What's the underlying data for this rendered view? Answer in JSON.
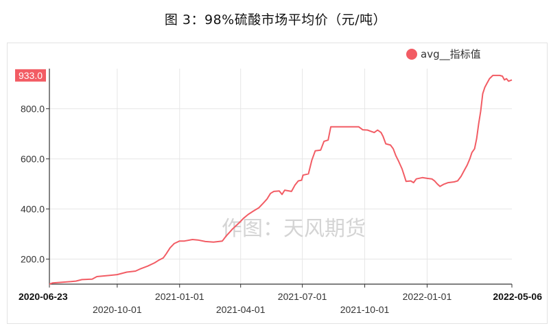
{
  "chart_data": {
    "type": "line",
    "title": "图 3：98%硫酸市场平均价（元/吨）",
    "watermark": "作图：天风期货",
    "legend": {
      "label": "avg__指标值",
      "position": "top-right",
      "color": "#f25c64"
    },
    "ylim": [
      100,
      960
    ],
    "y_ticks": [
      {
        "value": 200,
        "label": "200.0"
      },
      {
        "value": 400,
        "label": "400.0"
      },
      {
        "value": 600,
        "label": "600.0"
      },
      {
        "value": 800,
        "label": "800.0"
      }
    ],
    "max_label": {
      "value": 933,
      "label": "933.0"
    },
    "xlim": [
      "2020-06-23",
      "2022-05-06"
    ],
    "x_ticks": [
      {
        "date": "2020-06-23",
        "label": "2020-06-23",
        "row": 1,
        "bold": true
      },
      {
        "date": "2020-10-01",
        "label": "2020-10-01",
        "row": 2
      },
      {
        "date": "2021-01-01",
        "label": "2021-01-01",
        "row": 1
      },
      {
        "date": "2021-04-01",
        "label": "2021-04-01",
        "row": 2
      },
      {
        "date": "2021-07-01",
        "label": "2021-07-01",
        "row": 1
      },
      {
        "date": "2021-10-01",
        "label": "2021-10-01",
        "row": 2
      },
      {
        "date": "2022-01-01",
        "label": "2022-01-01",
        "row": 1
      },
      {
        "date": "2022-05-06",
        "label": "2022-05-06",
        "row": 1,
        "bold": true
      }
    ],
    "series": [
      {
        "name": "avg__指标值",
        "color": "#f25c64",
        "points": [
          [
            "2020-06-23",
            100
          ],
          [
            "2020-06-28",
            105
          ],
          [
            "2020-07-10",
            107
          ],
          [
            "2020-07-25",
            110
          ],
          [
            "2020-08-01",
            112
          ],
          [
            "2020-08-10",
            118
          ],
          [
            "2020-08-25",
            120
          ],
          [
            "2020-09-01",
            130
          ],
          [
            "2020-09-20",
            135
          ],
          [
            "2020-10-01",
            138
          ],
          [
            "2020-10-15",
            148
          ],
          [
            "2020-10-28",
            152
          ],
          [
            "2020-11-05",
            162
          ],
          [
            "2020-11-15",
            172
          ],
          [
            "2020-11-25",
            185
          ],
          [
            "2020-12-01",
            195
          ],
          [
            "2020-12-08",
            205
          ],
          [
            "2020-12-12",
            220
          ],
          [
            "2020-12-18",
            245
          ],
          [
            "2020-12-24",
            262
          ],
          [
            "2021-01-01",
            272
          ],
          [
            "2021-01-08",
            272
          ],
          [
            "2021-01-20",
            278
          ],
          [
            "2021-01-28",
            276
          ],
          [
            "2021-02-08",
            270
          ],
          [
            "2021-02-20",
            268
          ],
          [
            "2021-03-05",
            272
          ],
          [
            "2021-03-10",
            290
          ],
          [
            "2021-03-15",
            305
          ],
          [
            "2021-03-20",
            320
          ],
          [
            "2021-03-30",
            345
          ],
          [
            "2021-04-05",
            362
          ],
          [
            "2021-04-12",
            378
          ],
          [
            "2021-04-20",
            392
          ],
          [
            "2021-04-28",
            405
          ],
          [
            "2021-05-05",
            425
          ],
          [
            "2021-05-10",
            440
          ],
          [
            "2021-05-15",
            462
          ],
          [
            "2021-05-20",
            470
          ],
          [
            "2021-05-28",
            472
          ],
          [
            "2021-06-01",
            458
          ],
          [
            "2021-06-05",
            475
          ],
          [
            "2021-06-15",
            470
          ],
          [
            "2021-06-20",
            495
          ],
          [
            "2021-06-25",
            512
          ],
          [
            "2021-06-30",
            515
          ],
          [
            "2021-07-02",
            535
          ],
          [
            "2021-07-10",
            540
          ],
          [
            "2021-07-15",
            595
          ],
          [
            "2021-07-20",
            632
          ],
          [
            "2021-07-28",
            635
          ],
          [
            "2021-08-02",
            670
          ],
          [
            "2021-08-08",
            675
          ],
          [
            "2021-08-12",
            728
          ],
          [
            "2021-08-20",
            728
          ],
          [
            "2021-09-01",
            728
          ],
          [
            "2021-09-10",
            728
          ],
          [
            "2021-09-22",
            728
          ],
          [
            "2021-09-28",
            716
          ],
          [
            "2021-10-05",
            715
          ],
          [
            "2021-10-10",
            710
          ],
          [
            "2021-10-15",
            705
          ],
          [
            "2021-10-20",
            715
          ],
          [
            "2021-10-25",
            705
          ],
          [
            "2021-10-28",
            690
          ],
          [
            "2021-11-01",
            660
          ],
          [
            "2021-11-08",
            655
          ],
          [
            "2021-11-12",
            640
          ],
          [
            "2021-11-16",
            612
          ],
          [
            "2021-11-20",
            590
          ],
          [
            "2021-11-25",
            560
          ],
          [
            "2021-11-28",
            535
          ],
          [
            "2021-12-01",
            510
          ],
          [
            "2021-12-08",
            512
          ],
          [
            "2021-12-12",
            505
          ],
          [
            "2021-12-16",
            520
          ],
          [
            "2021-12-25",
            525
          ],
          [
            "2022-01-01",
            522
          ],
          [
            "2022-01-08",
            520
          ],
          [
            "2022-01-12",
            512
          ],
          [
            "2022-01-16",
            500
          ],
          [
            "2022-01-20",
            490
          ],
          [
            "2022-01-25",
            498
          ],
          [
            "2022-02-01",
            505
          ],
          [
            "2022-02-10",
            508
          ],
          [
            "2022-02-15",
            512
          ],
          [
            "2022-02-20",
            530
          ],
          [
            "2022-02-25",
            555
          ],
          [
            "2022-03-01",
            575
          ],
          [
            "2022-03-05",
            600
          ],
          [
            "2022-03-08",
            625
          ],
          [
            "2022-03-12",
            640
          ],
          [
            "2022-03-15",
            680
          ],
          [
            "2022-03-18",
            740
          ],
          [
            "2022-03-21",
            790
          ],
          [
            "2022-03-24",
            860
          ],
          [
            "2022-03-27",
            885
          ],
          [
            "2022-03-30",
            900
          ],
          [
            "2022-04-03",
            920
          ],
          [
            "2022-04-08",
            933
          ],
          [
            "2022-04-18",
            933
          ],
          [
            "2022-04-22",
            930
          ],
          [
            "2022-04-25",
            915
          ],
          [
            "2022-04-28",
            920
          ],
          [
            "2022-05-01",
            910
          ],
          [
            "2022-05-06",
            915
          ]
        ]
      }
    ],
    "grid": true
  }
}
